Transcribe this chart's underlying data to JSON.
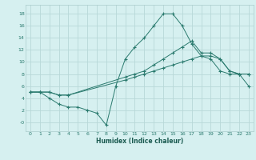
{
  "xlabel": "Humidex (Indice chaleur)",
  "bg_color": "#d6f0f0",
  "grid_color": "#b8d8d8",
  "line_color": "#2a7a6e",
  "xlim": [
    -0.5,
    23.5
  ],
  "ylim": [
    -1.5,
    19.5
  ],
  "xticks": [
    0,
    1,
    2,
    3,
    4,
    5,
    6,
    7,
    8,
    9,
    10,
    11,
    12,
    13,
    14,
    15,
    16,
    17,
    18,
    19,
    20,
    21,
    22,
    23
  ],
  "yticks": [
    0,
    2,
    4,
    6,
    8,
    10,
    12,
    14,
    16,
    18
  ],
  "ytick_labels": [
    "-0",
    "2",
    "4",
    "6",
    "8",
    "10",
    "12",
    "14",
    "16",
    "18"
  ],
  "series1_x": [
    0,
    1,
    2,
    3,
    4,
    10,
    11,
    12,
    13,
    14,
    15,
    16,
    17,
    18,
    19,
    20,
    21,
    22,
    23
  ],
  "series1_y": [
    5,
    5,
    5,
    4.5,
    4.5,
    7,
    7.5,
    8,
    8.5,
    9,
    9.5,
    10,
    10.5,
    11,
    11,
    10.5,
    8.5,
    8,
    8
  ],
  "series2_x": [
    0,
    1,
    2,
    3,
    4,
    10,
    11,
    12,
    13,
    14,
    15,
    16,
    17,
    18,
    19,
    20,
    21,
    22,
    23
  ],
  "series2_y": [
    5,
    5,
    5,
    4.5,
    4.5,
    7.5,
    8,
    8.5,
    9.5,
    10.5,
    11.5,
    12.5,
    13.5,
    11.5,
    11.5,
    10.5,
    8.5,
    8,
    8
  ],
  "series3_x": [
    0,
    1,
    2,
    3,
    4,
    5,
    6,
    7,
    8,
    9,
    10,
    11,
    12,
    13,
    14,
    15,
    16,
    17,
    18,
    19,
    20,
    21,
    22,
    23
  ],
  "series3_y": [
    5,
    5,
    4,
    3,
    2.5,
    2.5,
    2,
    1.5,
    -0.5,
    6,
    10.5,
    12.5,
    14,
    16,
    18,
    18,
    16,
    13,
    11,
    10.5,
    8.5,
    8,
    8,
    6
  ]
}
